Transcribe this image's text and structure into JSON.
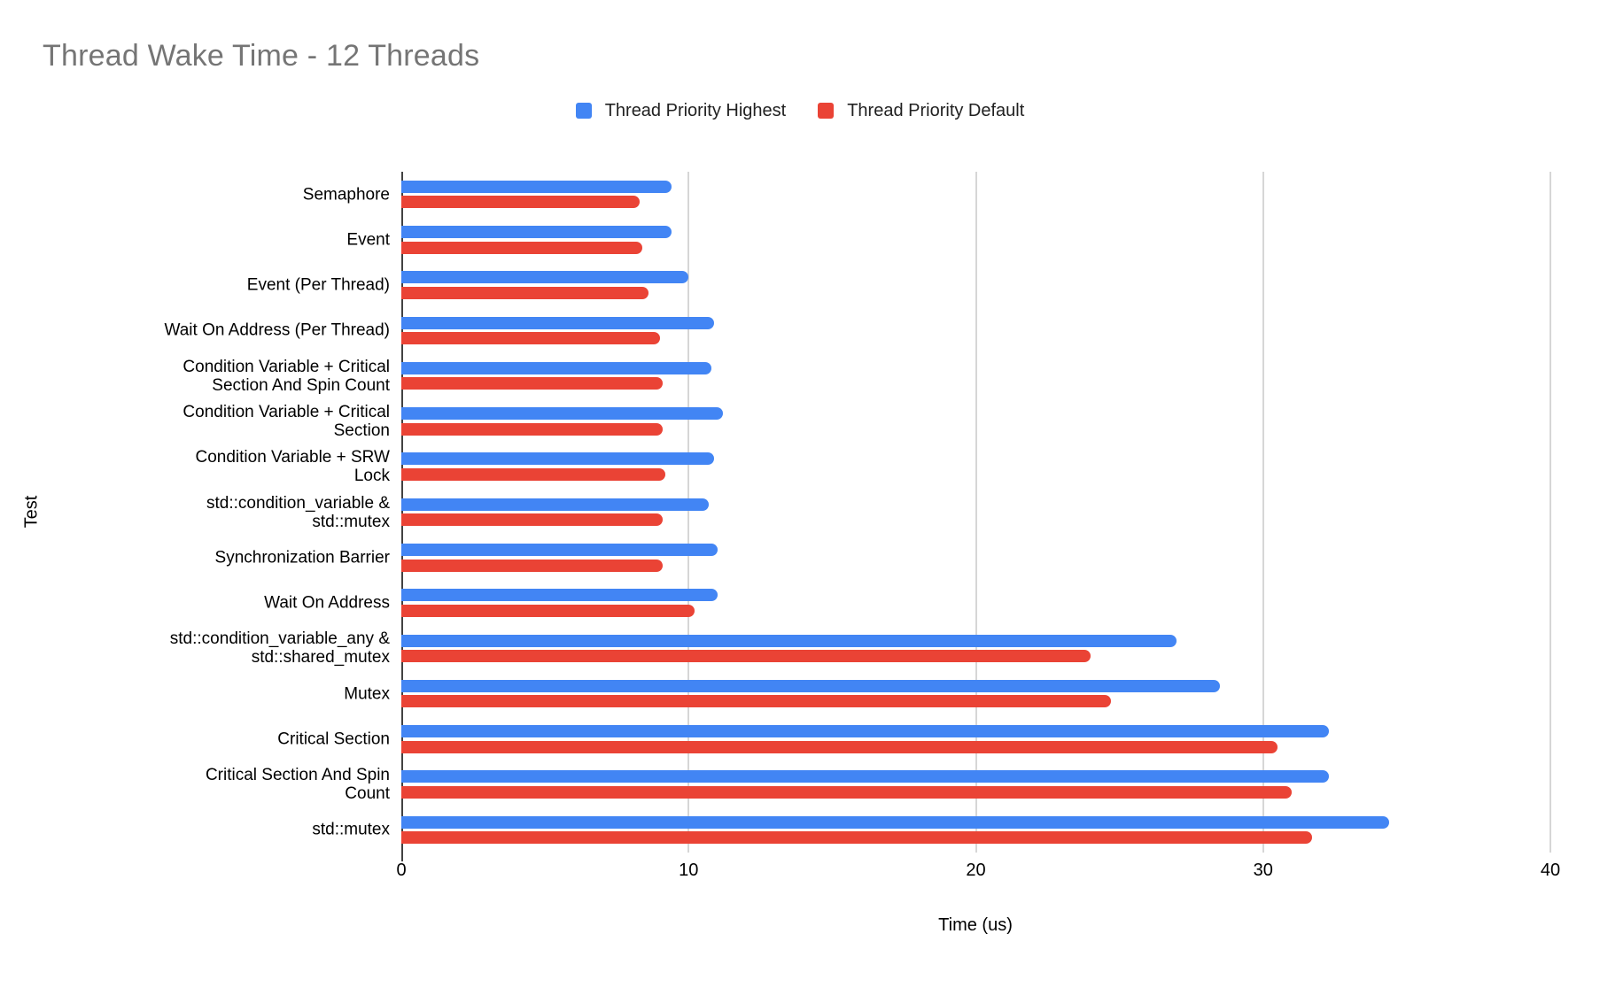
{
  "title": "Thread Wake Time - 12 Threads",
  "legend": [
    {
      "label": "Thread Priority Highest",
      "color": "#4285F4"
    },
    {
      "label": "Thread Priority Default",
      "color": "#EA4335"
    }
  ],
  "axes": {
    "x_title": "Time (us)",
    "y_title": "Test"
  },
  "colors": {
    "series_highest": "#4285F4",
    "series_default": "#EA4335",
    "title_text": "#757575",
    "gridline": "#d6d6d6",
    "axis_line": "#424242",
    "label_text": "#000000"
  },
  "chart_data": {
    "type": "bar",
    "orientation": "horizontal",
    "title": "Thread Wake Time - 12 Threads",
    "xlabel": "Time (us)",
    "ylabel": "Test",
    "xlim": [
      0,
      40
    ],
    "xticks": [
      0,
      10,
      20,
      30,
      40
    ],
    "grid": true,
    "legend_position": "top",
    "categories": [
      "Semaphore",
      "Event",
      "Event (Per Thread)",
      "Wait On Address (Per Thread)",
      "Condition Variable + Critical\nSection And Spin Count",
      "Condition Variable + Critical\nSection",
      "Condition Variable + SRW\nLock",
      "std::condition_variable &\nstd::mutex",
      "Synchronization Barrier",
      "Wait On Address",
      "std::condition_variable_any &\nstd::shared_mutex",
      "Mutex",
      "Critical Section",
      "Critical Section And Spin\nCount",
      "std::mutex"
    ],
    "series": [
      {
        "name": "Thread Priority Highest",
        "color": "#4285F4",
        "values": [
          9.4,
          9.4,
          10.0,
          10.9,
          10.8,
          11.2,
          10.9,
          10.7,
          11.0,
          11.0,
          27.0,
          28.5,
          32.3,
          32.3,
          34.4
        ]
      },
      {
        "name": "Thread Priority Default",
        "color": "#EA4335",
        "values": [
          8.3,
          8.4,
          8.6,
          9.0,
          9.1,
          9.1,
          9.2,
          9.1,
          9.1,
          10.2,
          24.0,
          24.7,
          30.5,
          31.0,
          31.7
        ]
      }
    ]
  }
}
